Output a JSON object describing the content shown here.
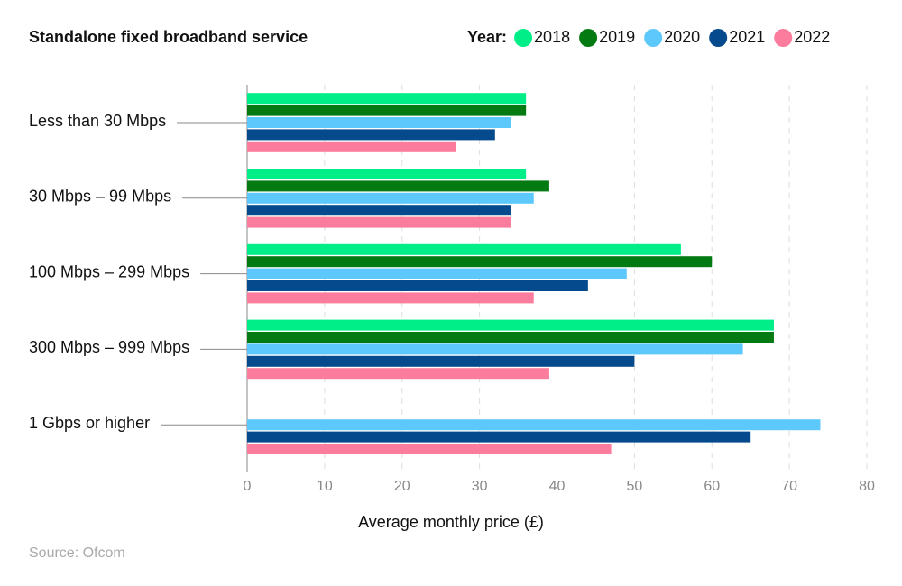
{
  "chart_data": {
    "type": "bar",
    "orientation": "horizontal",
    "title": "Standalone fixed broadband service",
    "legend_title": "Year:",
    "categories": [
      "Less than 30 Mbps",
      "30 Mbps – 99 Mbps",
      "100 Mbps – 299 Mbps",
      "300 Mbps – 999 Mbps",
      "1 Gbps or higher"
    ],
    "series": [
      {
        "name": "2018",
        "color": "#00ee88",
        "values": [
          36,
          36,
          56,
          68,
          null
        ]
      },
      {
        "name": "2019",
        "color": "#047a12",
        "values": [
          36,
          39,
          60,
          68,
          null
        ]
      },
      {
        "name": "2020",
        "color": "#5cc8fc",
        "values": [
          34,
          37,
          49,
          64,
          74
        ]
      },
      {
        "name": "2021",
        "color": "#044a8c",
        "values": [
          32,
          34,
          44,
          50,
          65
        ]
      },
      {
        "name": "2022",
        "color": "#fb7c9c",
        "values": [
          27,
          34,
          37,
          39,
          47
        ]
      }
    ],
    "xlabel": "Average monthly price (£)",
    "xlim": [
      0,
      80
    ],
    "xticks": [
      0,
      10,
      20,
      30,
      40,
      50,
      60,
      70,
      80
    ],
    "grid": true,
    "source": "Source: Ofcom"
  }
}
